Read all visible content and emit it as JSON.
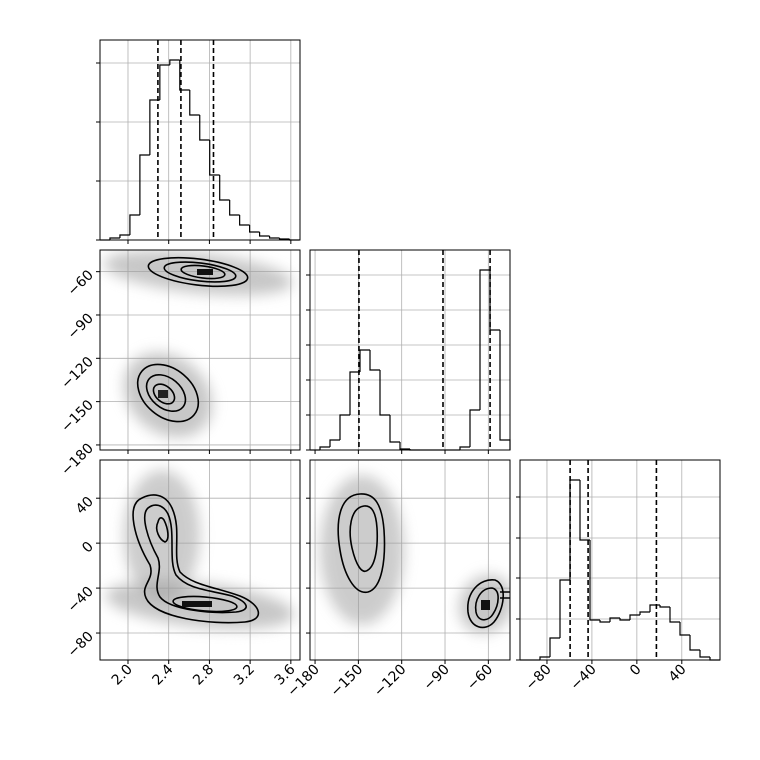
{
  "chart_data": {
    "type": "corner",
    "hist_ylim": [
      0,
      2000
    ],
    "parameters": [
      {
        "xlim": [
          1.725,
          3.69
        ],
        "xticks": [
          {
            "value": 2.0,
            "label": "2.0"
          },
          2.4,
          2.8,
          3.2,
          3.6
        ],
        "bins": [
          1.725,
          1.823,
          1.921,
          2.019,
          2.117,
          2.215,
          2.313,
          2.411,
          2.509,
          2.607,
          2.705,
          2.803,
          2.901,
          2.999,
          3.097,
          3.195,
          3.293,
          3.391,
          3.489,
          3.587,
          3.685
        ],
        "counts": [
          0,
          20,
          50,
          250,
          850,
          1400,
          1750,
          1800,
          1500,
          1250,
          1000,
          650,
          400,
          250,
          150,
          80,
          40,
          20,
          10,
          0
        ],
        "hist_yticks": [
          0,
          590,
          1180,
          1770
        ],
        "quantiles": [
          2.294,
          2.52,
          2.84
        ]
      },
      {
        "xlim": [
          -183.5,
          -45
        ],
        "xticks": [
          {
            "value": -180,
            "label": "−180"
          },
          {
            "value": -150,
            "label": "−150"
          },
          {
            "value": -120,
            "label": "−120"
          },
          {
            "value": -90,
            "label": "−90"
          },
          {
            "value": -60,
            "label": "−60"
          }
        ],
        "bins": [
          -183.5,
          -176.575,
          -169.65,
          -162.725,
          -155.8,
          -148.875,
          -141.95,
          -135.025,
          -128.1,
          -121.175,
          -114.25,
          -107.325,
          -100.4,
          -93.475,
          -86.55,
          -79.625,
          -72.7,
          -65.775,
          -58.85,
          -51.925,
          -45.0
        ],
        "counts": [
          0,
          30,
          100,
          350,
          780,
          1000,
          800,
          350,
          80,
          10,
          0,
          0,
          0,
          0,
          0,
          30,
          400,
          1800,
          1200,
          100
        ],
        "hist_yticks": [
          0,
          350,
          700,
          1050,
          1400,
          1750
        ],
        "quantiles": [
          -149.6,
          -91.4,
          -58.8
        ]
      },
      {
        "xlim": [
          -104,
          74
        ],
        "xticks": [
          {
            "value": -80,
            "label": "−80"
          },
          {
            "value": -40,
            "label": "−40"
          },
          0,
          40
        ],
        "bins": [
          -104,
          -95.1,
          -86.2,
          -77.3,
          -68.4,
          -59.5,
          -50.6,
          -41.7,
          -32.8,
          -23.9,
          -15,
          -6.1,
          2.8,
          11.7,
          20.6,
          29.5,
          38.4,
          47.3,
          56.2,
          65.1,
          74
        ],
        "counts": [
          0,
          0,
          30,
          220,
          800,
          1800,
          1200,
          400,
          380,
          420,
          400,
          450,
          480,
          550,
          530,
          380,
          250,
          100,
          30,
          0
        ],
        "hist_yticks": [
          0,
          410,
          820,
          1220,
          1630
        ],
        "quantiles": [
          -59.4,
          -43.4,
          17.4
        ]
      }
    ]
  }
}
